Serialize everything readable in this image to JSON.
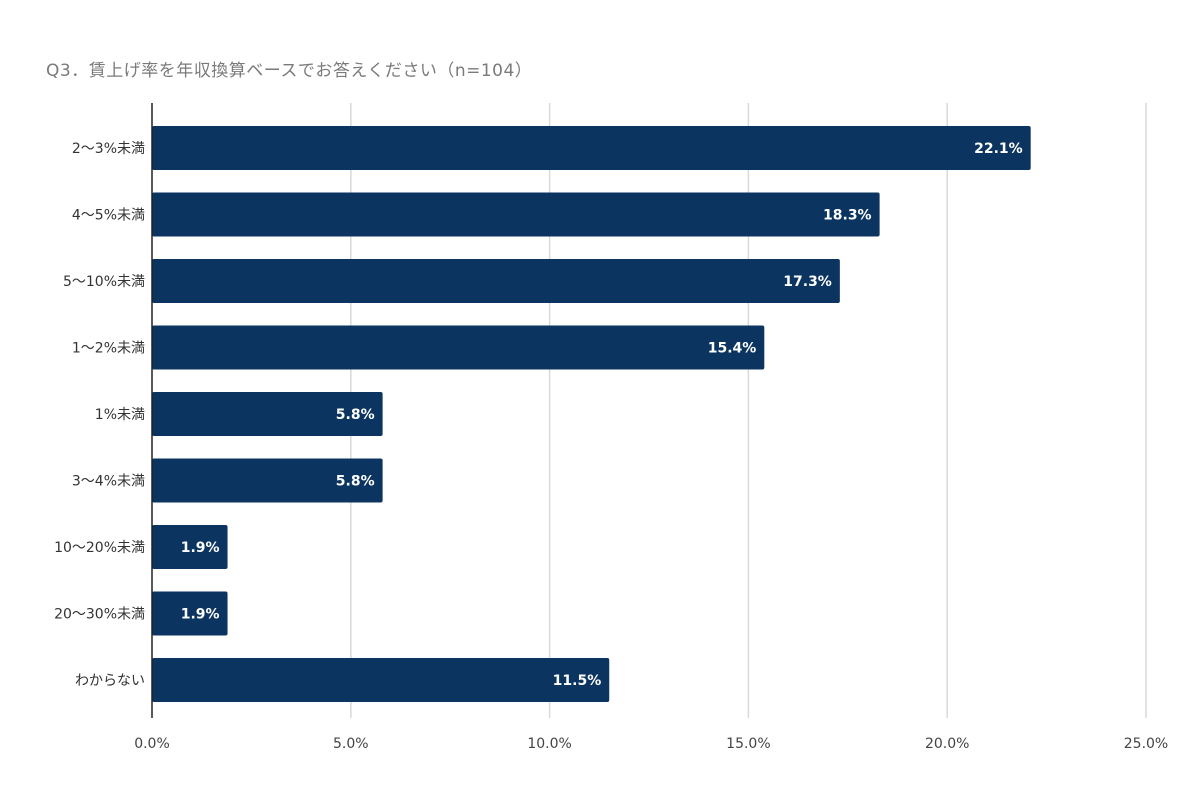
{
  "chart_data": {
    "type": "bar",
    "orientation": "horizontal",
    "title": "Q3．賃上げ率を年収換算ベースでお答えください（n=104）",
    "categories": [
      "2〜3%未満",
      "4〜5%未満",
      "5〜10%未満",
      "1〜2%未満",
      "1%未満",
      "3〜4%未満",
      "10〜20%未満",
      "20〜30%未満",
      "わからない"
    ],
    "values": [
      22.1,
      18.3,
      17.3,
      15.4,
      5.8,
      5.8,
      1.9,
      1.9,
      11.5
    ],
    "data_labels": [
      "22.1%",
      "18.3%",
      "17.3%",
      "15.4%",
      "5.8%",
      "5.8%",
      "1.9%",
      "1.9%",
      "11.5%"
    ],
    "x_ticks": [
      0,
      5,
      10,
      15,
      20,
      25
    ],
    "x_tick_labels": [
      "0.0%",
      "5.0%",
      "10.0%",
      "15.0%",
      "20.0%",
      "25.0%"
    ],
    "xlim": [
      0,
      25
    ],
    "grid": true,
    "legend": "none",
    "bar_color": "#0b3560",
    "xlabel": "",
    "ylabel": ""
  }
}
